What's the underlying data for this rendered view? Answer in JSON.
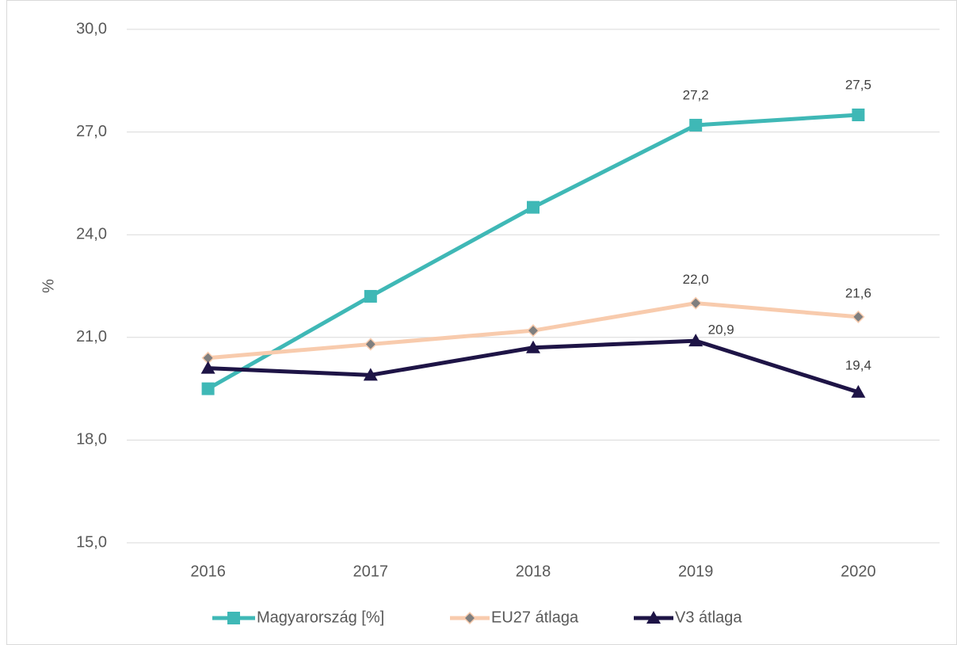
{
  "chart_data": {
    "type": "line",
    "y_label": "%",
    "categories": [
      "2016",
      "2017",
      "2018",
      "2019",
      "2020"
    ],
    "ylim": [
      15,
      30
    ],
    "yticks": [
      {
        "value": 15,
        "label": "15,0"
      },
      {
        "value": 18,
        "label": "18,0"
      },
      {
        "value": 21,
        "label": "21,0"
      },
      {
        "value": 24,
        "label": "24,0"
      },
      {
        "value": 27,
        "label": "27,0"
      },
      {
        "value": 30,
        "label": "30,0"
      }
    ],
    "grid": true,
    "legend": "bottom",
    "series": [
      {
        "name": "Magyarország [%]",
        "color": "#3fb8b6",
        "marker": "square",
        "values": [
          19.5,
          22.2,
          24.8,
          27.2,
          27.5
        ],
        "value_labels": [
          null,
          null,
          null,
          "27,2",
          "27,5"
        ]
      },
      {
        "name": "EU27 átlaga",
        "color": "#f8cbad",
        "marker": "diamond",
        "values": [
          20.4,
          20.8,
          21.2,
          22.0,
          21.6
        ],
        "value_labels": [
          null,
          null,
          null,
          "22,0",
          "21,6"
        ]
      },
      {
        "name": "V3 átlaga",
        "color": "#1e1446",
        "marker": "triangle",
        "values": [
          20.1,
          19.9,
          20.7,
          20.9,
          19.4
        ],
        "value_labels": [
          null,
          null,
          null,
          "20,9",
          "19,4"
        ]
      }
    ]
  }
}
